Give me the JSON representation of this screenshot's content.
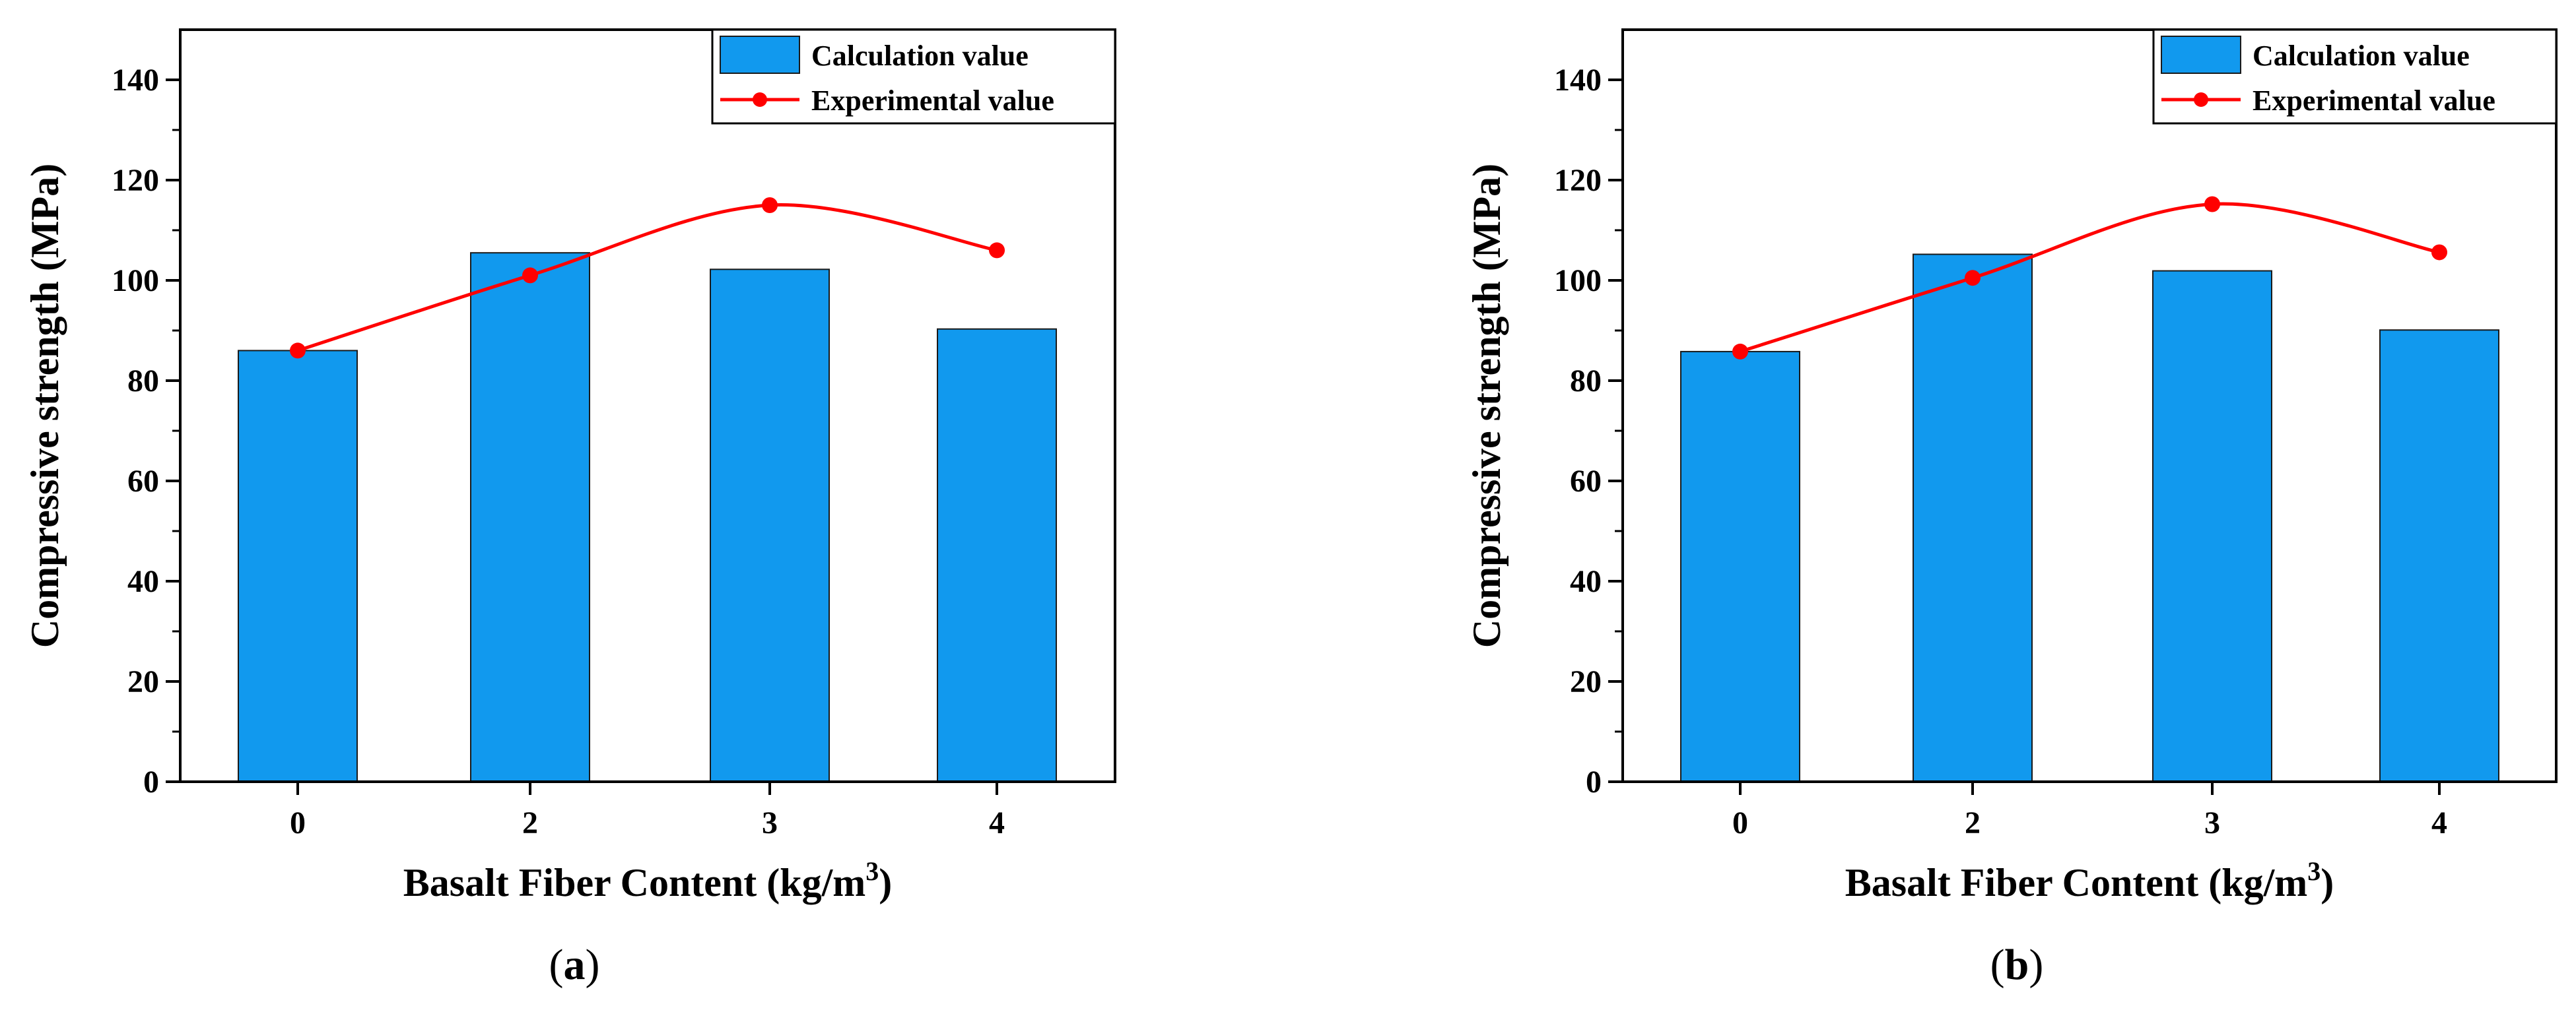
{
  "chart_data": [
    {
      "type": "bar",
      "panel": "a",
      "categories": [
        "0",
        "2",
        "3",
        "4"
      ],
      "series": [
        {
          "name": "Calculation value",
          "kind": "bar",
          "values": [
            86,
            105.5,
            102.2,
            90.3
          ],
          "color": "#1199ee"
        },
        {
          "name": "Experimental value",
          "kind": "line",
          "values": [
            86,
            101,
            115,
            106
          ],
          "color": "#ff0000"
        }
      ],
      "xlabel": "Basalt Fiber Content (kg/m",
      "xlabel_sup": "3",
      "xlabel_close": ")",
      "ylabel": "Compressive strength (MPa)",
      "ylim": [
        0,
        150
      ],
      "yticks": [
        0,
        20,
        40,
        60,
        80,
        100,
        120,
        140
      ],
      "legend_position": "top-right",
      "grid": false
    },
    {
      "type": "bar",
      "panel": "b",
      "categories": [
        "0",
        "2",
        "3",
        "4"
      ],
      "series": [
        {
          "name": "Calculation value",
          "kind": "bar",
          "values": [
            85.8,
            105.2,
            101.9,
            90.1
          ],
          "color": "#1199ee"
        },
        {
          "name": "Experimental value",
          "kind": "line",
          "values": [
            85.8,
            100.5,
            115.2,
            105.6
          ],
          "color": "#ff0000"
        }
      ],
      "xlabel": "Basalt Fiber Content (kg/m",
      "xlabel_sup": "3",
      "xlabel_close": ")",
      "ylabel": "Compressive strength (MPa)",
      "ylim": [
        0,
        150
      ],
      "yticks": [
        0,
        20,
        40,
        60,
        80,
        100,
        120,
        140
      ],
      "legend_position": "top-right",
      "grid": false
    }
  ],
  "panel_labels": {
    "a": {
      "open": "(",
      "letter": "a",
      "close": ")"
    },
    "b": {
      "open": "(",
      "letter": "b",
      "close": ")"
    }
  }
}
